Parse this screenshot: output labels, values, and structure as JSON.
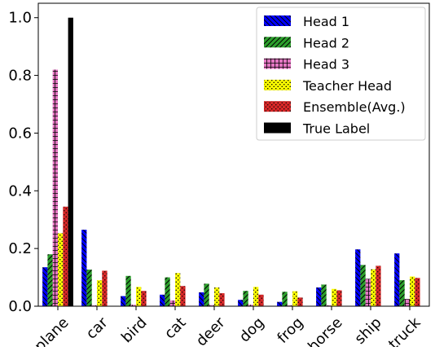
{
  "chart_data": {
    "type": "bar",
    "categories": [
      "plane",
      "car",
      "bird",
      "cat",
      "deer",
      "dog",
      "frog",
      "horse",
      "ship",
      "truck"
    ],
    "series": [
      {
        "name": "Head 1",
        "color": "#0000ff",
        "pattern": "backslash-hatch",
        "values": [
          0.135,
          0.265,
          0.035,
          0.04,
          0.048,
          0.022,
          0.015,
          0.065,
          0.197,
          0.183
        ]
      },
      {
        "name": "Head 2",
        "color": "#2ca02c",
        "pattern": "slash-hatch",
        "values": [
          0.18,
          0.127,
          0.105,
          0.1,
          0.078,
          0.053,
          0.05,
          0.075,
          0.143,
          0.09
        ]
      },
      {
        "name": "Head 3",
        "color": "#e377c2",
        "pattern": "grid-hatch",
        "values": [
          0.82,
          0.003,
          0.005,
          0.02,
          0.004,
          0.005,
          0.003,
          0.003,
          0.095,
          0.025
        ]
      },
      {
        "name": "Teacher Head",
        "color": "#ffff00",
        "pattern": "dots",
        "values": [
          0.253,
          0.09,
          0.067,
          0.115,
          0.065,
          0.067,
          0.052,
          0.06,
          0.128,
          0.103
        ]
      },
      {
        "name": "Ensemble(Avg.)",
        "color": "#d62728",
        "pattern": "dots-dark",
        "values": [
          0.345,
          0.123,
          0.053,
          0.07,
          0.045,
          0.04,
          0.03,
          0.055,
          0.14,
          0.098
        ]
      },
      {
        "name": "True Label",
        "color": "#000000",
        "pattern": "solid",
        "values": [
          1.0,
          0,
          0,
          0,
          0,
          0,
          0,
          0,
          0,
          0
        ]
      }
    ],
    "yticks": [
      "0.0",
      "0.2",
      "0.4",
      "0.6",
      "0.8",
      "1.0"
    ],
    "ylim": [
      0,
      1.05
    ],
    "grid": false,
    "legend_position": "top-right"
  }
}
